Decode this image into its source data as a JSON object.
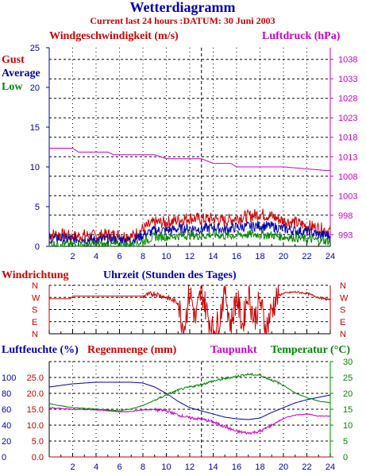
{
  "title": "Wetterdiagramm",
  "subtitle": "Current last 24 hours :DATUM: 30 Juni 2003",
  "colors": {
    "red": "#cc0000",
    "blue": "#0000aa",
    "green": "#008800",
    "magenta": "#cc00cc",
    "black": "#000000"
  },
  "chart_data": [
    {
      "type": "line",
      "title": "Windgeschwindigkeit (m/s)",
      "y2label": "Luftdruck (hPa)",
      "legend": [
        "Gust",
        "Average",
        "Low"
      ],
      "x_ticks": [
        "2",
        "4",
        "6",
        "8",
        "10",
        "12",
        "14",
        "16",
        "18",
        "20",
        "22",
        "24"
      ],
      "xlim": [
        0,
        24
      ],
      "ylim": [
        0,
        25
      ],
      "y_ticks": [
        "0",
        "5",
        "10",
        "15",
        "20",
        "25"
      ],
      "y2lim": [
        990,
        1041
      ],
      "y2_ticks": [
        "993",
        "998",
        "1003",
        "1008",
        "1013",
        "1018",
        "1023",
        "1028",
        "1033",
        "1038"
      ],
      "grid": true,
      "series": [
        {
          "name": "Gust",
          "x": [
            0,
            1,
            2,
            3,
            4,
            5,
            6,
            7,
            8,
            9,
            10,
            11,
            12,
            13,
            14,
            15,
            16,
            17,
            18,
            19,
            20,
            21,
            22,
            23,
            24
          ],
          "y": [
            1.5,
            1.5,
            1.2,
            1.4,
            1.3,
            1.5,
            1.4,
            1.2,
            2.2,
            3.0,
            3.0,
            3.3,
            3.6,
            3.4,
            3.5,
            3.2,
            3.6,
            3.8,
            4.1,
            3.8,
            3.2,
            3.0,
            2.6,
            2.3,
            1.9
          ]
        },
        {
          "name": "Average",
          "x": [
            0,
            1,
            2,
            3,
            4,
            5,
            6,
            7,
            8,
            9,
            10,
            11,
            12,
            13,
            14,
            15,
            16,
            17,
            18,
            19,
            20,
            21,
            22,
            23,
            24
          ],
          "y": [
            1.0,
            1.0,
            0.9,
            0.9,
            0.8,
            0.9,
            0.9,
            0.8,
            1.4,
            2.0,
            2.0,
            2.2,
            2.3,
            2.2,
            2.4,
            2.1,
            2.4,
            2.5,
            2.6,
            2.5,
            2.2,
            2.0,
            1.8,
            1.5,
            1.3
          ]
        },
        {
          "name": "Low",
          "x": [
            0,
            1,
            2,
            3,
            4,
            5,
            6,
            7,
            8,
            9,
            10,
            11,
            12,
            13,
            14,
            15,
            16,
            17,
            18,
            19,
            20,
            21,
            22,
            23,
            24
          ],
          "y": [
            0.3,
            0.3,
            0.2,
            0.2,
            0.2,
            0.2,
            0.2,
            0.2,
            0.6,
            1.2,
            1.2,
            1.3,
            1.4,
            1.3,
            1.5,
            1.3,
            1.4,
            1.5,
            1.5,
            1.4,
            1.2,
            1.1,
            0.9,
            0.8,
            0.6
          ]
        },
        {
          "name": "Luftdruck (hPa)",
          "axis": "right",
          "x": [
            0,
            2,
            2.5,
            5,
            5.5,
            9,
            10,
            13,
            14,
            15.5,
            16,
            20,
            23.5,
            24
          ],
          "y": [
            1015.2,
            1015.2,
            1014.2,
            1014.2,
            1013.5,
            1013.5,
            1012.5,
            1012.5,
            1011.3,
            1011.3,
            1010.4,
            1010.4,
            1009.5,
            1009.5
          ]
        }
      ]
    },
    {
      "type": "line",
      "title": "Windrichtung",
      "xlabel": "Uhrzeit (Stunden des Tages)",
      "y_categories": [
        "N",
        "W",
        "S",
        "E",
        "N"
      ],
      "xlim": [
        0,
        24
      ],
      "grid": true,
      "series": [
        {
          "name": "Windrichtung",
          "x": [
            0,
            1.8,
            2,
            8,
            9,
            10,
            11,
            11.5,
            12,
            12.5,
            13,
            13.5,
            14,
            14.5,
            15,
            15.5,
            16,
            16.5,
            17,
            17.5,
            18,
            18.5,
            19,
            19.5,
            20,
            21,
            22,
            23,
            24
          ],
          "y": [
            260,
            260,
            280,
            280,
            300,
            270,
            230,
            30,
            320,
            100,
            330,
            150,
            20,
            90,
            340,
            60,
            280,
            60,
            320,
            100,
            250,
            30,
            180,
            280,
            300,
            310,
            300,
            270,
            250
          ]
        }
      ]
    },
    {
      "type": "line",
      "title": "Luftfeuchte (%)",
      "legend": [
        "Luftfeuchte (%)",
        "Regenmenge (mm)",
        "Taupunkt",
        "Temperatur (°C)"
      ],
      "x_ticks": [
        "2",
        "4",
        "6",
        "8",
        "10",
        "12",
        "14",
        "16",
        "18",
        "20",
        "22",
        "24"
      ],
      "xlim": [
        0,
        24
      ],
      "ylim": [
        0,
        120
      ],
      "y_ticks": [
        "0",
        "20",
        "40",
        "60",
        "80",
        "100"
      ],
      "y_ticks_rain": [
        "0.0",
        "5.0",
        "10.0",
        "15.0",
        "20.0",
        "25.0"
      ],
      "y2lim": [
        0,
        30
      ],
      "y2_ticks": [
        "0",
        "5",
        "10",
        "15",
        "20",
        "25",
        "30"
      ],
      "grid": true,
      "series": [
        {
          "name": "Luftfeuchte (%)",
          "x": [
            0,
            2,
            4,
            6,
            7,
            8,
            9,
            10,
            11,
            12,
            13,
            14,
            15,
            16,
            17,
            18,
            19,
            20,
            21,
            22,
            23,
            24
          ],
          "y": [
            88,
            92,
            94,
            94,
            94,
            93,
            88,
            80,
            70,
            62,
            58,
            54,
            50,
            48,
            47,
            49,
            56,
            62,
            68,
            72,
            75,
            78
          ]
        },
        {
          "name": "Regenmenge (mm)",
          "x": [
            0,
            24
          ],
          "y": [
            0,
            0
          ]
        },
        {
          "name": "Taupunkt",
          "x": [
            0,
            2,
            4,
            6,
            7,
            8,
            9,
            10,
            11,
            12,
            13,
            14,
            15,
            16,
            17,
            18,
            19,
            20,
            21,
            22,
            23,
            24
          ],
          "y": [
            15.5,
            15.0,
            14.8,
            14.2,
            14.3,
            14.8,
            14.9,
            14.5,
            13.2,
            12.3,
            11.9,
            11.0,
            9.5,
            8.0,
            7.5,
            8.0,
            10.0,
            12.1,
            13.2,
            13.5,
            12.9,
            12.8
          ]
        },
        {
          "name": "Temperatur (°C)",
          "x": [
            0,
            1,
            2,
            4,
            6,
            7,
            8,
            9,
            10,
            11,
            12,
            13,
            14,
            15,
            16,
            17,
            18,
            19,
            20,
            21,
            22,
            23,
            24
          ],
          "y": [
            16.8,
            16.1,
            15.5,
            15.1,
            14.5,
            15.1,
            16.2,
            17.8,
            19.5,
            21.0,
            22.0,
            22.8,
            23.9,
            24.6,
            25.4,
            26.0,
            25.7,
            24.2,
            22.6,
            20.1,
            18.7,
            17.6,
            17.0
          ]
        }
      ]
    }
  ]
}
